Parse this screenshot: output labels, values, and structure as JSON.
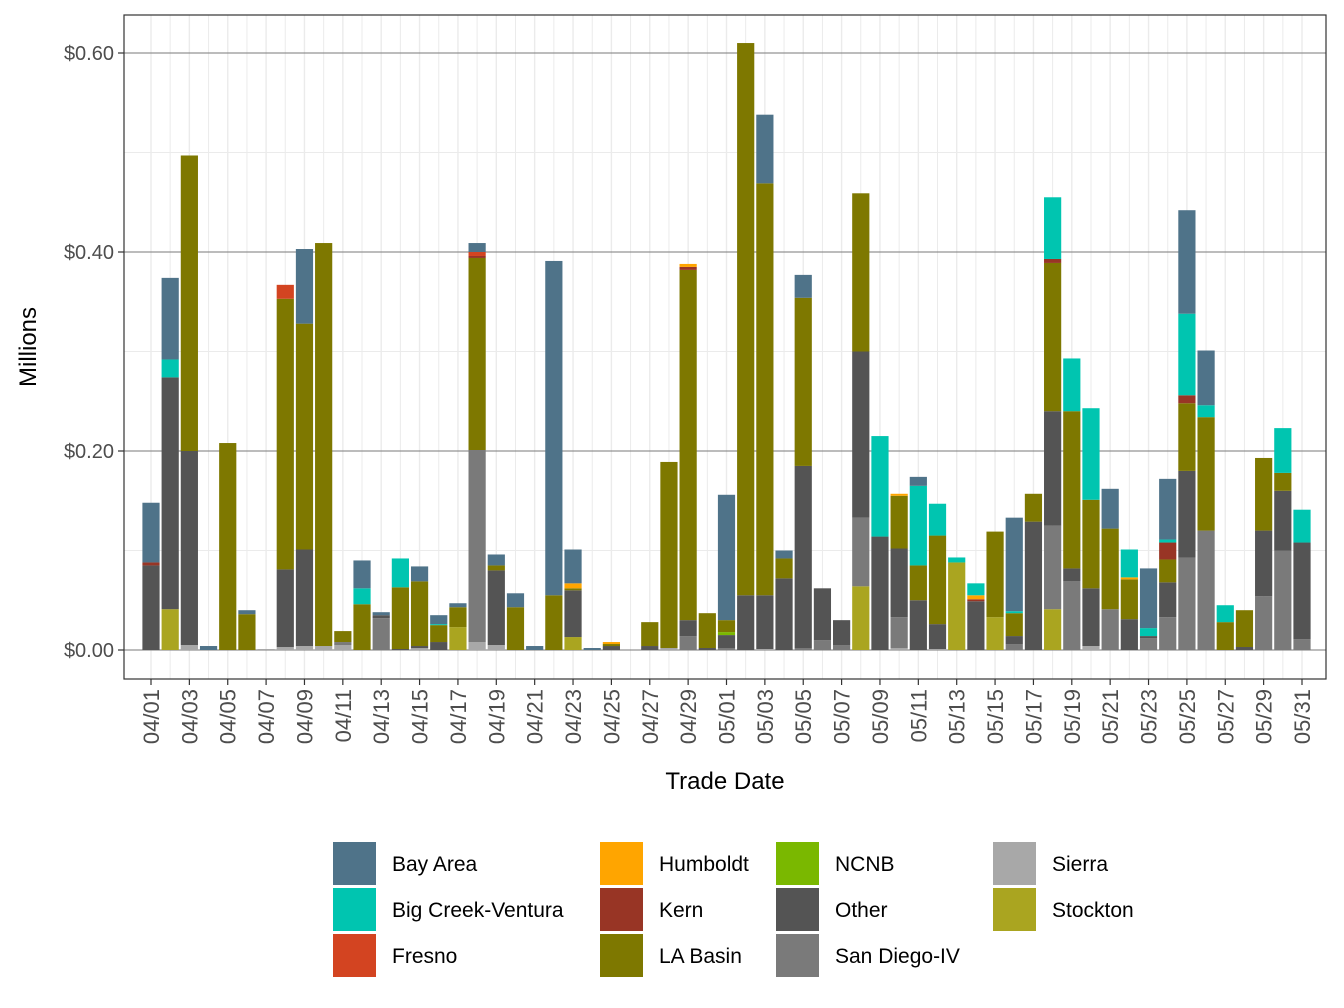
{
  "chart_data": {
    "type": "bar",
    "stacked": true,
    "xlabel": "Trade Date",
    "ylabel": "Millions",
    "ylim": [
      -0.03,
      0.64
    ],
    "y_ticks": [
      {
        "value": 0.0,
        "label": "$0.00"
      },
      {
        "value": 0.2,
        "label": "$0.20"
      },
      {
        "value": 0.4,
        "label": "$0.40"
      },
      {
        "value": 0.6,
        "label": "$0.60"
      }
    ],
    "x_tick_labels": [
      "04/01",
      "04/03",
      "04/05",
      "04/07",
      "04/09",
      "04/11",
      "04/13",
      "04/15",
      "04/17",
      "04/19",
      "04/21",
      "04/23",
      "04/25",
      "04/27",
      "04/29",
      "05/01",
      "05/03",
      "05/05",
      "05/07",
      "05/09",
      "05/11",
      "05/13",
      "05/15",
      "05/17",
      "05/19",
      "05/21",
      "05/23",
      "05/25",
      "05/27",
      "05/29",
      "05/31"
    ],
    "legend": [
      {
        "name": "Bay Area",
        "color": "#4F7389"
      },
      {
        "name": "Big Creek-Ventura",
        "color": "#00C5B0"
      },
      {
        "name": "Fresno",
        "color": "#D34421"
      },
      {
        "name": "Humboldt",
        "color": "#FFA500"
      },
      {
        "name": "Kern",
        "color": "#983525"
      },
      {
        "name": "LA Basin",
        "color": "#7E7800"
      },
      {
        "name": "NCNB",
        "color": "#7AB800"
      },
      {
        "name": "Other",
        "color": "#545454"
      },
      {
        "name": "San Diego-IV",
        "color": "#7A7A7A"
      },
      {
        "name": "Sierra",
        "color": "#A8A8A8"
      },
      {
        "name": "Stockton",
        "color": "#AAA520"
      }
    ],
    "stack_order": [
      "Sierra",
      "Stockton",
      "San Diego-IV",
      "Other",
      "NCNB",
      "LA Basin",
      "Kern",
      "Humboldt",
      "Fresno",
      "Big Creek-Ventura",
      "Bay Area"
    ],
    "bars": [
      {
        "date": "04/01",
        "values": {
          "Other": 0.085,
          "Kern": 0.003,
          "Bay Area": 0.06
        }
      },
      {
        "date": "04/02",
        "values": {
          "Stockton": 0.041,
          "Other": 0.233,
          "Big Creek-Ventura": 0.018,
          "Bay Area": 0.082
        }
      },
      {
        "date": "04/03",
        "values": {
          "Sierra": 0.005,
          "Other": 0.195,
          "LA Basin": 0.297
        }
      },
      {
        "date": "04/04",
        "values": {
          "Bay Area": 0.004
        }
      },
      {
        "date": "04/05",
        "values": {
          "LA Basin": 0.208
        }
      },
      {
        "date": "04/06",
        "values": {
          "LA Basin": 0.036,
          "Bay Area": 0.004
        }
      },
      {
        "date": "04/07",
        "values": {
          "Sierra": 0.001
        }
      },
      {
        "date": "04/08",
        "values": {
          "Sierra": 0.003,
          "Other": 0.078,
          "LA Basin": 0.272,
          "Fresno": 0.014
        }
      },
      {
        "date": "04/09",
        "values": {
          "Sierra": 0.004,
          "Other": 0.097,
          "LA Basin": 0.227,
          "Bay Area": 0.075
        }
      },
      {
        "date": "04/10",
        "values": {
          "Sierra": 0.004,
          "LA Basin": 0.405
        }
      },
      {
        "date": "04/11",
        "values": {
          "Sierra": 0.005,
          "San Diego-IV": 0.003,
          "LA Basin": 0.011
        }
      },
      {
        "date": "04/12",
        "values": {
          "LA Basin": 0.046,
          "Big Creek-Ventura": 0.016,
          "Bay Area": 0.028
        }
      },
      {
        "date": "04/13",
        "values": {
          "San Diego-IV": 0.032,
          "Other": 0.003,
          "Bay Area": 0.003
        }
      },
      {
        "date": "04/14",
        "values": {
          "Other": 0.001,
          "LA Basin": 0.062,
          "Big Creek-Ventura": 0.029
        }
      },
      {
        "date": "04/15",
        "values": {
          "Sierra": 0.002,
          "Other": 0.002,
          "LA Basin": 0.065,
          "Bay Area": 0.015
        }
      },
      {
        "date": "04/16",
        "values": {
          "Other": 0.008,
          "LA Basin": 0.017,
          "Big Creek-Ventura": 0.001,
          "Bay Area": 0.009
        }
      },
      {
        "date": "04/17",
        "values": {
          "Stockton": 0.023,
          "LA Basin": 0.02,
          "Bay Area": 0.004
        }
      },
      {
        "date": "04/18",
        "values": {
          "Sierra": 0.008,
          "San Diego-IV": 0.193,
          "LA Basin": 0.193,
          "Fresno": 0.004,
          "Kern": 0.002,
          "Bay Area": 0.009
        }
      },
      {
        "date": "04/19",
        "values": {
          "Sierra": 0.005,
          "Other": 0.075,
          "LA Basin": 0.005,
          "Bay Area": 0.011
        }
      },
      {
        "date": "04/20",
        "values": {
          "LA Basin": 0.043,
          "Bay Area": 0.014
        }
      },
      {
        "date": "04/21",
        "values": {
          "Bay Area": 0.004
        }
      },
      {
        "date": "04/22",
        "values": {
          "LA Basin": 0.055,
          "Bay Area": 0.336
        }
      },
      {
        "date": "04/23",
        "values": {
          "Stockton": 0.013,
          "Other": 0.047,
          "LA Basin": 0.002,
          "Humboldt": 0.005,
          "Bay Area": 0.034
        }
      },
      {
        "date": "04/24",
        "values": {
          "Bay Area": 0.002
        }
      },
      {
        "date": "04/25",
        "values": {
          "Other": 0.004,
          "LA Basin": 0.002,
          "Humboldt": 0.002
        }
      },
      {
        "date": "04/27",
        "values": {
          "Other": 0.004,
          "LA Basin": 0.024
        }
      },
      {
        "date": "04/28",
        "values": {
          "Sierra": 0.002,
          "LA Basin": 0.187
        }
      },
      {
        "date": "04/29",
        "values": {
          "San Diego-IV": 0.014,
          "Other": 0.016,
          "LA Basin": 0.352,
          "Kern": 0.003,
          "Humboldt": 0.003
        }
      },
      {
        "date": "04/30",
        "values": {
          "Other": 0.002,
          "LA Basin": 0.035
        }
      },
      {
        "date": "05/01",
        "values": {
          "San Diego-IV": 0.002,
          "Other": 0.013,
          "LA Basin": 0.012,
          "NCNB": 0.003,
          "Bay Area": 0.126
        }
      },
      {
        "date": "05/02",
        "values": {
          "Other": 0.055,
          "LA Basin": 0.555
        }
      },
      {
        "date": "05/03",
        "values": {
          "Sierra": 0.001,
          "Other": 0.054,
          "LA Basin": 0.414,
          "Bay Area": 0.069
        }
      },
      {
        "date": "05/04",
        "values": {
          "Other": 0.072,
          "LA Basin": 0.02,
          "Bay Area": 0.008
        }
      },
      {
        "date": "05/05",
        "values": {
          "San Diego-IV": 0.002,
          "Other": 0.183,
          "LA Basin": 0.169,
          "Bay Area": 0.023
        }
      },
      {
        "date": "05/06",
        "values": {
          "San Diego-IV": 0.01,
          "Other": 0.052
        }
      },
      {
        "date": "05/07",
        "values": {
          "San Diego-IV": 0.005,
          "Other": 0.025
        }
      },
      {
        "date": "05/08",
        "values": {
          "Stockton": 0.064,
          "San Diego-IV": 0.069,
          "Other": 0.167,
          "LA Basin": 0.159
        }
      },
      {
        "date": "05/09",
        "values": {
          "Other": 0.114,
          "Big Creek-Ventura": 0.101
        }
      },
      {
        "date": "05/10",
        "values": {
          "Sierra": 0.002,
          "San Diego-IV": 0.031,
          "Other": 0.069,
          "LA Basin": 0.053,
          "Humboldt": 0.002
        }
      },
      {
        "date": "05/11",
        "values": {
          "Other": 0.05,
          "LA Basin": 0.035,
          "Big Creek-Ventura": 0.08,
          "Bay Area": 0.009
        }
      },
      {
        "date": "05/12",
        "values": {
          "Sierra": 0.001,
          "Other": 0.025,
          "LA Basin": 0.089,
          "Big Creek-Ventura": 0.032
        }
      },
      {
        "date": "05/13",
        "values": {
          "Stockton": 0.088,
          "Big Creek-Ventura": 0.005
        }
      },
      {
        "date": "05/14",
        "values": {
          "Other": 0.049,
          "Kern": 0.002,
          "Humboldt": 0.004,
          "Big Creek-Ventura": 0.012
        }
      },
      {
        "date": "05/15",
        "values": {
          "Stockton": 0.033,
          "LA Basin": 0.086
        }
      },
      {
        "date": "05/16",
        "values": {
          "San Diego-IV": 0.006,
          "Other": 0.008,
          "LA Basin": 0.023,
          "Big Creek-Ventura": 0.002,
          "Bay Area": 0.094
        }
      },
      {
        "date": "05/17",
        "values": {
          "Other": 0.129,
          "LA Basin": 0.028
        }
      },
      {
        "date": "05/18",
        "values": {
          "Stockton": 0.041,
          "San Diego-IV": 0.084,
          "Other": 0.115,
          "LA Basin": 0.149,
          "Kern": 0.004,
          "Big Creek-Ventura": 0.062
        }
      },
      {
        "date": "05/19",
        "values": {
          "San Diego-IV": 0.069,
          "Other": 0.013,
          "LA Basin": 0.158,
          "Big Creek-Ventura": 0.053
        }
      },
      {
        "date": "05/20",
        "values": {
          "Sierra": 0.004,
          "Other": 0.058,
          "LA Basin": 0.089,
          "Big Creek-Ventura": 0.092
        }
      },
      {
        "date": "05/21",
        "values": {
          "San Diego-IV": 0.041,
          "LA Basin": 0.081,
          "Bay Area": 0.04
        }
      },
      {
        "date": "05/22",
        "values": {
          "Other": 0.031,
          "LA Basin": 0.04,
          "Humboldt": 0.002,
          "Big Creek-Ventura": 0.028
        }
      },
      {
        "date": "05/23",
        "values": {
          "San Diego-IV": 0.012,
          "Other": 0.002,
          "Big Creek-Ventura": 0.008,
          "Bay Area": 0.06
        }
      },
      {
        "date": "05/24",
        "values": {
          "San Diego-IV": 0.033,
          "Other": 0.035,
          "LA Basin": 0.023,
          "Kern": 0.017,
          "Big Creek-Ventura": 0.003,
          "Bay Area": 0.061
        }
      },
      {
        "date": "05/25",
        "values": {
          "San Diego-IV": 0.093,
          "Other": 0.087,
          "LA Basin": 0.068,
          "Kern": 0.008,
          "Big Creek-Ventura": 0.082,
          "Bay Area": 0.104
        }
      },
      {
        "date": "05/26",
        "values": {
          "San Diego-IV": 0.12,
          "LA Basin": 0.114,
          "Big Creek-Ventura": 0.012,
          "Bay Area": 0.055
        }
      },
      {
        "date": "05/27",
        "values": {
          "LA Basin": 0.028,
          "Big Creek-Ventura": 0.017
        }
      },
      {
        "date": "05/28",
        "values": {
          "Other": 0.003,
          "LA Basin": 0.037
        }
      },
      {
        "date": "05/29",
        "values": {
          "San Diego-IV": 0.054,
          "Other": 0.066,
          "LA Basin": 0.073
        }
      },
      {
        "date": "05/30",
        "values": {
          "San Diego-IV": 0.1,
          "Other": 0.06,
          "LA Basin": 0.018,
          "Big Creek-Ventura": 0.045
        }
      },
      {
        "date": "05/31",
        "values": {
          "San Diego-IV": 0.011,
          "Other": 0.097,
          "Big Creek-Ventura": 0.033
        }
      }
    ]
  }
}
